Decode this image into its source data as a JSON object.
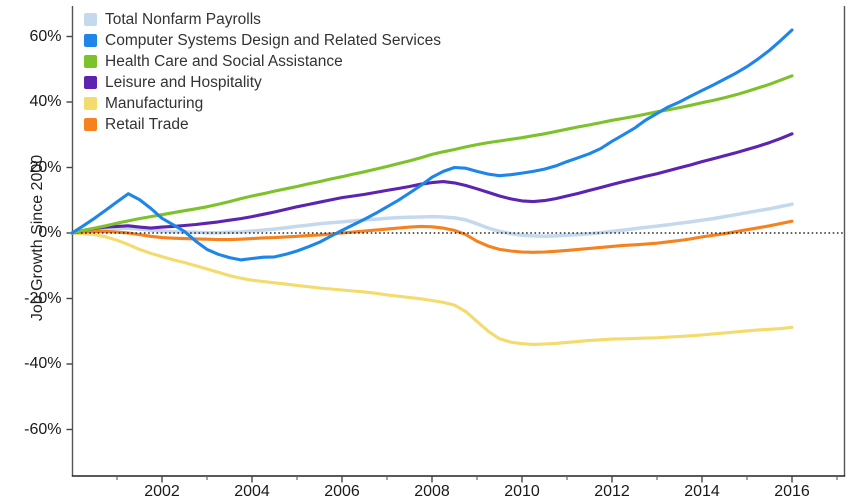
{
  "chart_data": {
    "type": "line",
    "title": "",
    "ylabel": "Job Growth Since 2000",
    "xlabel": "",
    "xlim": [
      2000,
      2017.2
    ],
    "ylim": [
      -74,
      69
    ],
    "grid": false,
    "zero_line": true,
    "legend_position": "top-left-inside",
    "x_start": 2000,
    "x_step": 0.25,
    "x_ticks_major": {
      "values": [
        2002,
        2004,
        2006,
        2008,
        2010,
        2012,
        2014,
        2016
      ],
      "labels": [
        "2002",
        "2004",
        "2006",
        "2008",
        "2010",
        "2012",
        "2014",
        "2016"
      ]
    },
    "x_ticks_minor": [
      2001,
      2003,
      2005,
      2007,
      2009,
      2011,
      2013,
      2015,
      2017
    ],
    "y_ticks": {
      "values": [
        60,
        40,
        20,
        0,
        -20,
        -40,
        -60
      ],
      "labels": [
        "60%",
        "40%",
        "20%",
        "0%",
        "-20%",
        "-40%",
        "-60%"
      ]
    },
    "series": [
      {
        "name": "Total Nonfarm Payrolls",
        "color": "#c4d9ee",
        "values": [
          0,
          0.5,
          0.9,
          1.2,
          1.4,
          1.4,
          1.2,
          0.9,
          0.6,
          0.4,
          0.3,
          0.2,
          0.1,
          0.1,
          0.2,
          0.3,
          0.6,
          0.9,
          1.2,
          1.6,
          2,
          2.4,
          2.8,
          3.1,
          3.4,
          3.7,
          4,
          4.2,
          4.5,
          4.7,
          4.8,
          4.9,
          5,
          4.9,
          4.6,
          4,
          2.8,
          1.5,
          0.5,
          -0.2,
          -0.7,
          -0.9,
          -1,
          -0.9,
          -0.7,
          -0.5,
          -0.2,
          0.1,
          0.5,
          0.9,
          1.3,
          1.7,
          2.1,
          2.5,
          3,
          3.4,
          3.9,
          4.4,
          5,
          5.6,
          6.2,
          6.8,
          7.4,
          8.1,
          8.8
        ]
      },
      {
        "name": "Computer Systems Design and Related Services",
        "color": "#1d86e8",
        "values": [
          0,
          2.2,
          4.5,
          7,
          9.5,
          12,
          10.2,
          7.5,
          4.5,
          2.5,
          0.5,
          -2.5,
          -5,
          -6.5,
          -7.5,
          -8.2,
          -7.8,
          -7.4,
          -7.3,
          -6.5,
          -5.5,
          -4.2,
          -2.8,
          -1,
          0.8,
          2.5,
          4.2,
          6,
          8,
          10,
          12.2,
          14.5,
          17,
          18.8,
          20,
          19.8,
          18.8,
          18,
          17.5,
          17.8,
          18.3,
          18.8,
          19.5,
          20.5,
          21.8,
          23,
          24.2,
          25.8,
          28,
          30,
          32,
          34.5,
          36.5,
          38.5,
          40,
          41.8,
          43.5,
          45.2,
          47,
          48.8,
          50.8,
          53.2,
          55.8,
          58.8,
          62
        ]
      },
      {
        "name": "Health Care and Social Assistance",
        "color": "#7cc22a",
        "values": [
          0,
          0.8,
          1.5,
          2.2,
          3,
          3.7,
          4.4,
          5,
          5.6,
          6.2,
          6.8,
          7.4,
          8,
          8.8,
          9.6,
          10.5,
          11.3,
          12,
          12.8,
          13.5,
          14.2,
          15,
          15.7,
          16.5,
          17.2,
          18,
          18.7,
          19.5,
          20.3,
          21.2,
          22,
          23,
          24,
          24.8,
          25.5,
          26.3,
          27,
          27.6,
          28.1,
          28.6,
          29.1,
          29.7,
          30.3,
          31,
          31.7,
          32.4,
          33,
          33.7,
          34.4,
          35,
          35.6,
          36.3,
          37,
          37.6,
          38.3,
          39,
          39.8,
          40.5,
          41.3,
          42.2,
          43.2,
          44.3,
          45.4,
          46.7,
          48
        ]
      },
      {
        "name": "Leisure and Hospitality",
        "color": "#5c24b0",
        "values": [
          0,
          0.8,
          1.4,
          1.8,
          2,
          2.2,
          1.8,
          1.5,
          1.8,
          2,
          2.3,
          2.6,
          3,
          3.4,
          3.9,
          4.4,
          5,
          5.7,
          6.4,
          7.2,
          8,
          8.7,
          9.4,
          10.1,
          10.8,
          11.3,
          11.8,
          12.4,
          13,
          13.6,
          14.2,
          14.9,
          15.4,
          15.7,
          15.3,
          14.5,
          13.5,
          12.4,
          11.3,
          10.4,
          9.8,
          9.6,
          9.9,
          10.5,
          11.3,
          12.1,
          13,
          13.9,
          14.8,
          15.7,
          16.5,
          17.3,
          18.1,
          19,
          19.9,
          20.8,
          21.8,
          22.7,
          23.6,
          24.5,
          25.5,
          26.5,
          27.6,
          28.9,
          30.3
        ]
      },
      {
        "name": "Manufacturing",
        "color": "#f3db6d",
        "values": [
          0,
          -0.2,
          -0.5,
          -1.2,
          -2.2,
          -3.5,
          -5,
          -6.2,
          -7.2,
          -8.2,
          -9,
          -10,
          -11,
          -12,
          -13,
          -13.8,
          -14.4,
          -14.8,
          -15.2,
          -15.6,
          -16,
          -16.4,
          -16.8,
          -17.1,
          -17.4,
          -17.7,
          -18,
          -18.4,
          -18.9,
          -19.3,
          -19.7,
          -20.1,
          -20.6,
          -21.2,
          -22,
          -24,
          -27,
          -30,
          -32.3,
          -33.3,
          -33.8,
          -34,
          -33.9,
          -33.7,
          -33.4,
          -33.1,
          -32.8,
          -32.6,
          -32.4,
          -32.3,
          -32.2,
          -32.1,
          -32,
          -31.8,
          -31.6,
          -31.4,
          -31.1,
          -30.8,
          -30.5,
          -30.2,
          -29.9,
          -29.6,
          -29.4,
          -29.2,
          -28.8
        ]
      },
      {
        "name": "Retail Trade",
        "color": "#f5821f",
        "values": [
          0,
          0.3,
          0.5,
          0.5,
          0.3,
          0,
          -0.5,
          -1,
          -1.4,
          -1.6,
          -1.7,
          -1.8,
          -1.9,
          -2,
          -2,
          -1.9,
          -1.7,
          -1.5,
          -1.4,
          -1.2,
          -1,
          -0.8,
          -0.6,
          -0.3,
          0,
          0.3,
          0.6,
          0.9,
          1.2,
          1.5,
          1.8,
          2,
          1.9,
          1.5,
          0.8,
          -0.5,
          -2.5,
          -4,
          -5,
          -5.5,
          -5.8,
          -5.9,
          -5.8,
          -5.6,
          -5.3,
          -5,
          -4.7,
          -4.4,
          -4.1,
          -3.8,
          -3.6,
          -3.4,
          -3.1,
          -2.7,
          -2.3,
          -1.8,
          -1.2,
          -0.7,
          -0.2,
          0.4,
          1,
          1.6,
          2.2,
          2.9,
          3.6
        ]
      }
    ]
  }
}
